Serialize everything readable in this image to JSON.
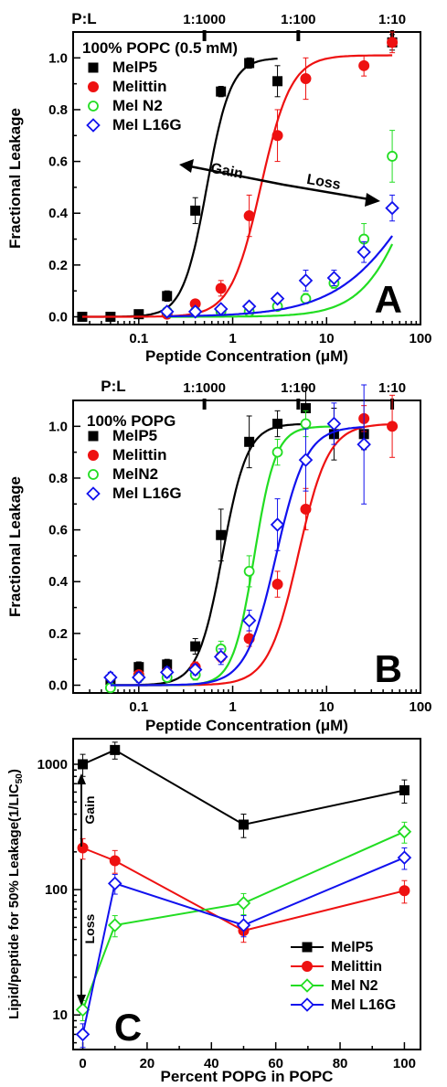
{
  "chart_data": [
    {
      "type": "scatter",
      "panel_letter": "A",
      "legend_title": "100% POPC (0.5 mM)",
      "xlabel": "Peptide Concentration (μM)",
      "ylabel": "Fractional Leakage",
      "x_scale": "log",
      "xlim": [
        0.02,
        100
      ],
      "ylim": [
        -0.03,
        1.1
      ],
      "x_ticks": [
        0.1,
        1,
        10,
        100
      ],
      "x_tick_labels": [
        "0.1",
        "1",
        "10",
        "100"
      ],
      "y_ticks": [
        0.0,
        0.2,
        0.4,
        0.6,
        0.8,
        1.0
      ],
      "y_tick_labels": [
        "0.0",
        "0.2",
        "0.4",
        "0.6",
        "0.8",
        "1.0"
      ],
      "top_axis": {
        "title": "P:L",
        "ticks": [
          0.5,
          5,
          50
        ],
        "labels": [
          "1:1000",
          "1:100",
          "1:10"
        ]
      },
      "legend_position": "top-left",
      "series": [
        {
          "name": "MelP5",
          "color": "#000000",
          "marker": "filled-square",
          "x": [
            0.025,
            0.05,
            0.1,
            0.2,
            0.4,
            0.75,
            1.5,
            3,
            50
          ],
          "y": [
            0.0,
            0.0,
            0.01,
            0.08,
            0.41,
            0.87,
            0.98,
            0.91,
            1.06
          ],
          "err": [
            0.01,
            0.01,
            0.01,
            0.02,
            0.05,
            0.02,
            0.02,
            0.06,
            0.03
          ],
          "fit": {
            "ec50": 0.53,
            "n": 3.4,
            "max": 1.0,
            "x_range": [
              0.025,
              3
            ]
          }
        },
        {
          "name": "Melittin",
          "color": "#ee1111",
          "marker": "filled-circle",
          "x": [
            0.2,
            0.4,
            0.75,
            1.5,
            3,
            6,
            25,
            50
          ],
          "y": [
            0.01,
            0.05,
            0.11,
            0.39,
            0.7,
            0.92,
            0.97,
            1.06
          ],
          "err": [
            0.01,
            0.01,
            0.03,
            0.08,
            0.1,
            0.08,
            0.04,
            0.04
          ],
          "fit": {
            "ec50": 2.0,
            "n": 2.7,
            "max": 1.01,
            "x_range": [
              0.025,
              50
            ]
          }
        },
        {
          "name": "Mel N2",
          "color": "#22dd22",
          "marker": "open-circle",
          "x": [
            0.2,
            0.4,
            0.75,
            1.5,
            3,
            6,
            12,
            25,
            50
          ],
          "y": [
            0.02,
            0.02,
            0.02,
            0.02,
            0.04,
            0.07,
            0.13,
            0.3,
            0.62
          ],
          "err": [
            0.01,
            0.01,
            0.01,
            0.01,
            0.01,
            0.02,
            0.02,
            0.06,
            0.1
          ],
          "fit": {
            "ec50": 90,
            "n": 1.6,
            "max": 1.0,
            "x_range": [
              0.2,
              50
            ]
          }
        },
        {
          "name": "Mel L16G",
          "color": "#1111ee",
          "marker": "open-diamond",
          "x": [
            0.2,
            0.4,
            0.75,
            1.5,
            3,
            6,
            12,
            25,
            50
          ],
          "y": [
            0.02,
            0.02,
            0.03,
            0.04,
            0.07,
            0.14,
            0.15,
            0.25,
            0.42
          ],
          "err": [
            0.01,
            0.01,
            0.01,
            0.01,
            0.01,
            0.04,
            0.03,
            0.04,
            0.05
          ],
          "fit": {
            "ec50": 110,
            "n": 1.0,
            "max": 1.0,
            "x_range": [
              0.2,
              50
            ]
          }
        }
      ],
      "annotations": {
        "gain": "Gain",
        "loss": "Loss"
      }
    },
    {
      "type": "scatter",
      "panel_letter": "B",
      "legend_title": "100% POPG",
      "xlabel": "Peptide Concentration (μM)",
      "ylabel": "Fractional Leakage",
      "x_scale": "log",
      "xlim": [
        0.02,
        100
      ],
      "ylim": [
        -0.03,
        1.1
      ],
      "x_ticks": [
        0.1,
        1,
        10,
        100
      ],
      "x_tick_labels": [
        "0.1",
        "1",
        "10",
        "100"
      ],
      "y_ticks": [
        0.0,
        0.2,
        0.4,
        0.6,
        0.8,
        1.0
      ],
      "y_tick_labels": [
        "0.0",
        "0.2",
        "0.4",
        "0.6",
        "0.8",
        "1.0"
      ],
      "top_axis": {
        "title": "P:L",
        "ticks": [
          0.5,
          5,
          50
        ],
        "labels": [
          "1:1000",
          "1:100",
          "1:10"
        ]
      },
      "legend_position": "top-left",
      "series": [
        {
          "name": "MelP5",
          "color": "#000000",
          "marker": "filled-square",
          "x": [
            0.05,
            0.1,
            0.2,
            0.4,
            0.75,
            1.5,
            3,
            6,
            12,
            25
          ],
          "y": [
            0.02,
            0.07,
            0.08,
            0.15,
            0.58,
            0.94,
            1.01,
            1.07,
            0.97,
            0.97
          ],
          "err": [
            0.01,
            0.02,
            0.02,
            0.03,
            0.1,
            0.1,
            0.05,
            0.08,
            0.1,
            0.06
          ],
          "fit": {
            "ec50": 0.78,
            "n": 3.3,
            "max": 1.01,
            "x_range": [
              0.05,
              6
            ]
          }
        },
        {
          "name": "Melittin",
          "color": "#ee1111",
          "marker": "filled-circle",
          "x": [
            0.1,
            0.2,
            0.4,
            0.75,
            1.5,
            3,
            6,
            25,
            50
          ],
          "y": [
            0.04,
            0.05,
            0.07,
            0.11,
            0.18,
            0.39,
            0.68,
            1.03,
            1.0
          ],
          "err": [
            0.01,
            0.01,
            0.02,
            0.02,
            0.03,
            0.05,
            0.08,
            0.05,
            0.12
          ],
          "fit": {
            "ec50": 5.0,
            "n": 2.7,
            "max": 1.01,
            "x_range": [
              0.05,
              50
            ]
          }
        },
        {
          "name": "MelN2",
          "color": "#22dd22",
          "marker": "open-circle",
          "x": [
            0.05,
            0.1,
            0.2,
            0.4,
            0.75,
            1.5,
            3,
            6
          ],
          "y": [
            -0.01,
            0.03,
            0.03,
            0.04,
            0.14,
            0.44,
            0.9,
            1.01
          ],
          "err": [
            0.01,
            0.01,
            0.01,
            0.02,
            0.03,
            0.06,
            0.05,
            0.05
          ],
          "fit": {
            "ec50": 1.7,
            "n": 3.8,
            "max": 1.0,
            "x_range": [
              0.05,
              12
            ]
          }
        },
        {
          "name": "Mel L16G",
          "color": "#1111ee",
          "marker": "open-diamond",
          "x": [
            0.05,
            0.1,
            0.2,
            0.4,
            0.75,
            1.5,
            3,
            6,
            12,
            25
          ],
          "y": [
            0.03,
            0.03,
            0.05,
            0.06,
            0.11,
            0.25,
            0.62,
            0.87,
            1.01,
            0.93
          ],
          "err": [
            0.02,
            0.02,
            0.02,
            0.02,
            0.03,
            0.04,
            0.1,
            0.12,
            0.08,
            0.23
          ],
          "fit": {
            "ec50": 2.9,
            "n": 2.7,
            "max": 1.0,
            "x_range": [
              0.05,
              25
            ]
          }
        }
      ]
    },
    {
      "type": "line",
      "panel_letter": "C",
      "xlabel": "Percent POPG in POPC",
      "ylabel_main": "Lipid/peptide for 50% Leakage",
      "ylabel_paren_open": "(1/LIC",
      "ylabel_sub": "50",
      "ylabel_paren_close": ")",
      "y_scale": "log",
      "xlim": [
        -3,
        105
      ],
      "ylim": [
        5.3,
        1600
      ],
      "x_ticks": [
        0,
        20,
        40,
        60,
        80,
        100
      ],
      "x_tick_labels": [
        "0",
        "20",
        "40",
        "60",
        "80",
        "100"
      ],
      "y_ticks": [
        10,
        100,
        1000
      ],
      "y_tick_labels": [
        "10",
        "100",
        "1000"
      ],
      "legend_position": "bottom-right",
      "categories_x": [
        0,
        10,
        50,
        100
      ],
      "series": [
        {
          "name": "MelP5",
          "color": "#000000",
          "marker": "filled-square",
          "values": [
            1000,
            1300,
            330,
            620
          ],
          "err": [
            200,
            200,
            70,
            130
          ]
        },
        {
          "name": "Melittin",
          "color": "#ee1111",
          "marker": "filled-circle",
          "values": [
            215,
            170,
            47,
            98
          ],
          "err": [
            40,
            35,
            9,
            20
          ]
        },
        {
          "name": "Mel N2",
          "color": "#22dd22",
          "marker": "open-diamond",
          "values": [
            11,
            52,
            78,
            290
          ],
          "err": [
            2,
            10,
            15,
            55
          ]
        },
        {
          "name": "Mel L16G",
          "color": "#1111ee",
          "marker": "open-diamond",
          "values": [
            7,
            112,
            52,
            180
          ],
          "err": [
            1.5,
            20,
            10,
            35
          ]
        }
      ],
      "annotations": {
        "gain": "Gain",
        "loss": "Loss"
      }
    }
  ]
}
